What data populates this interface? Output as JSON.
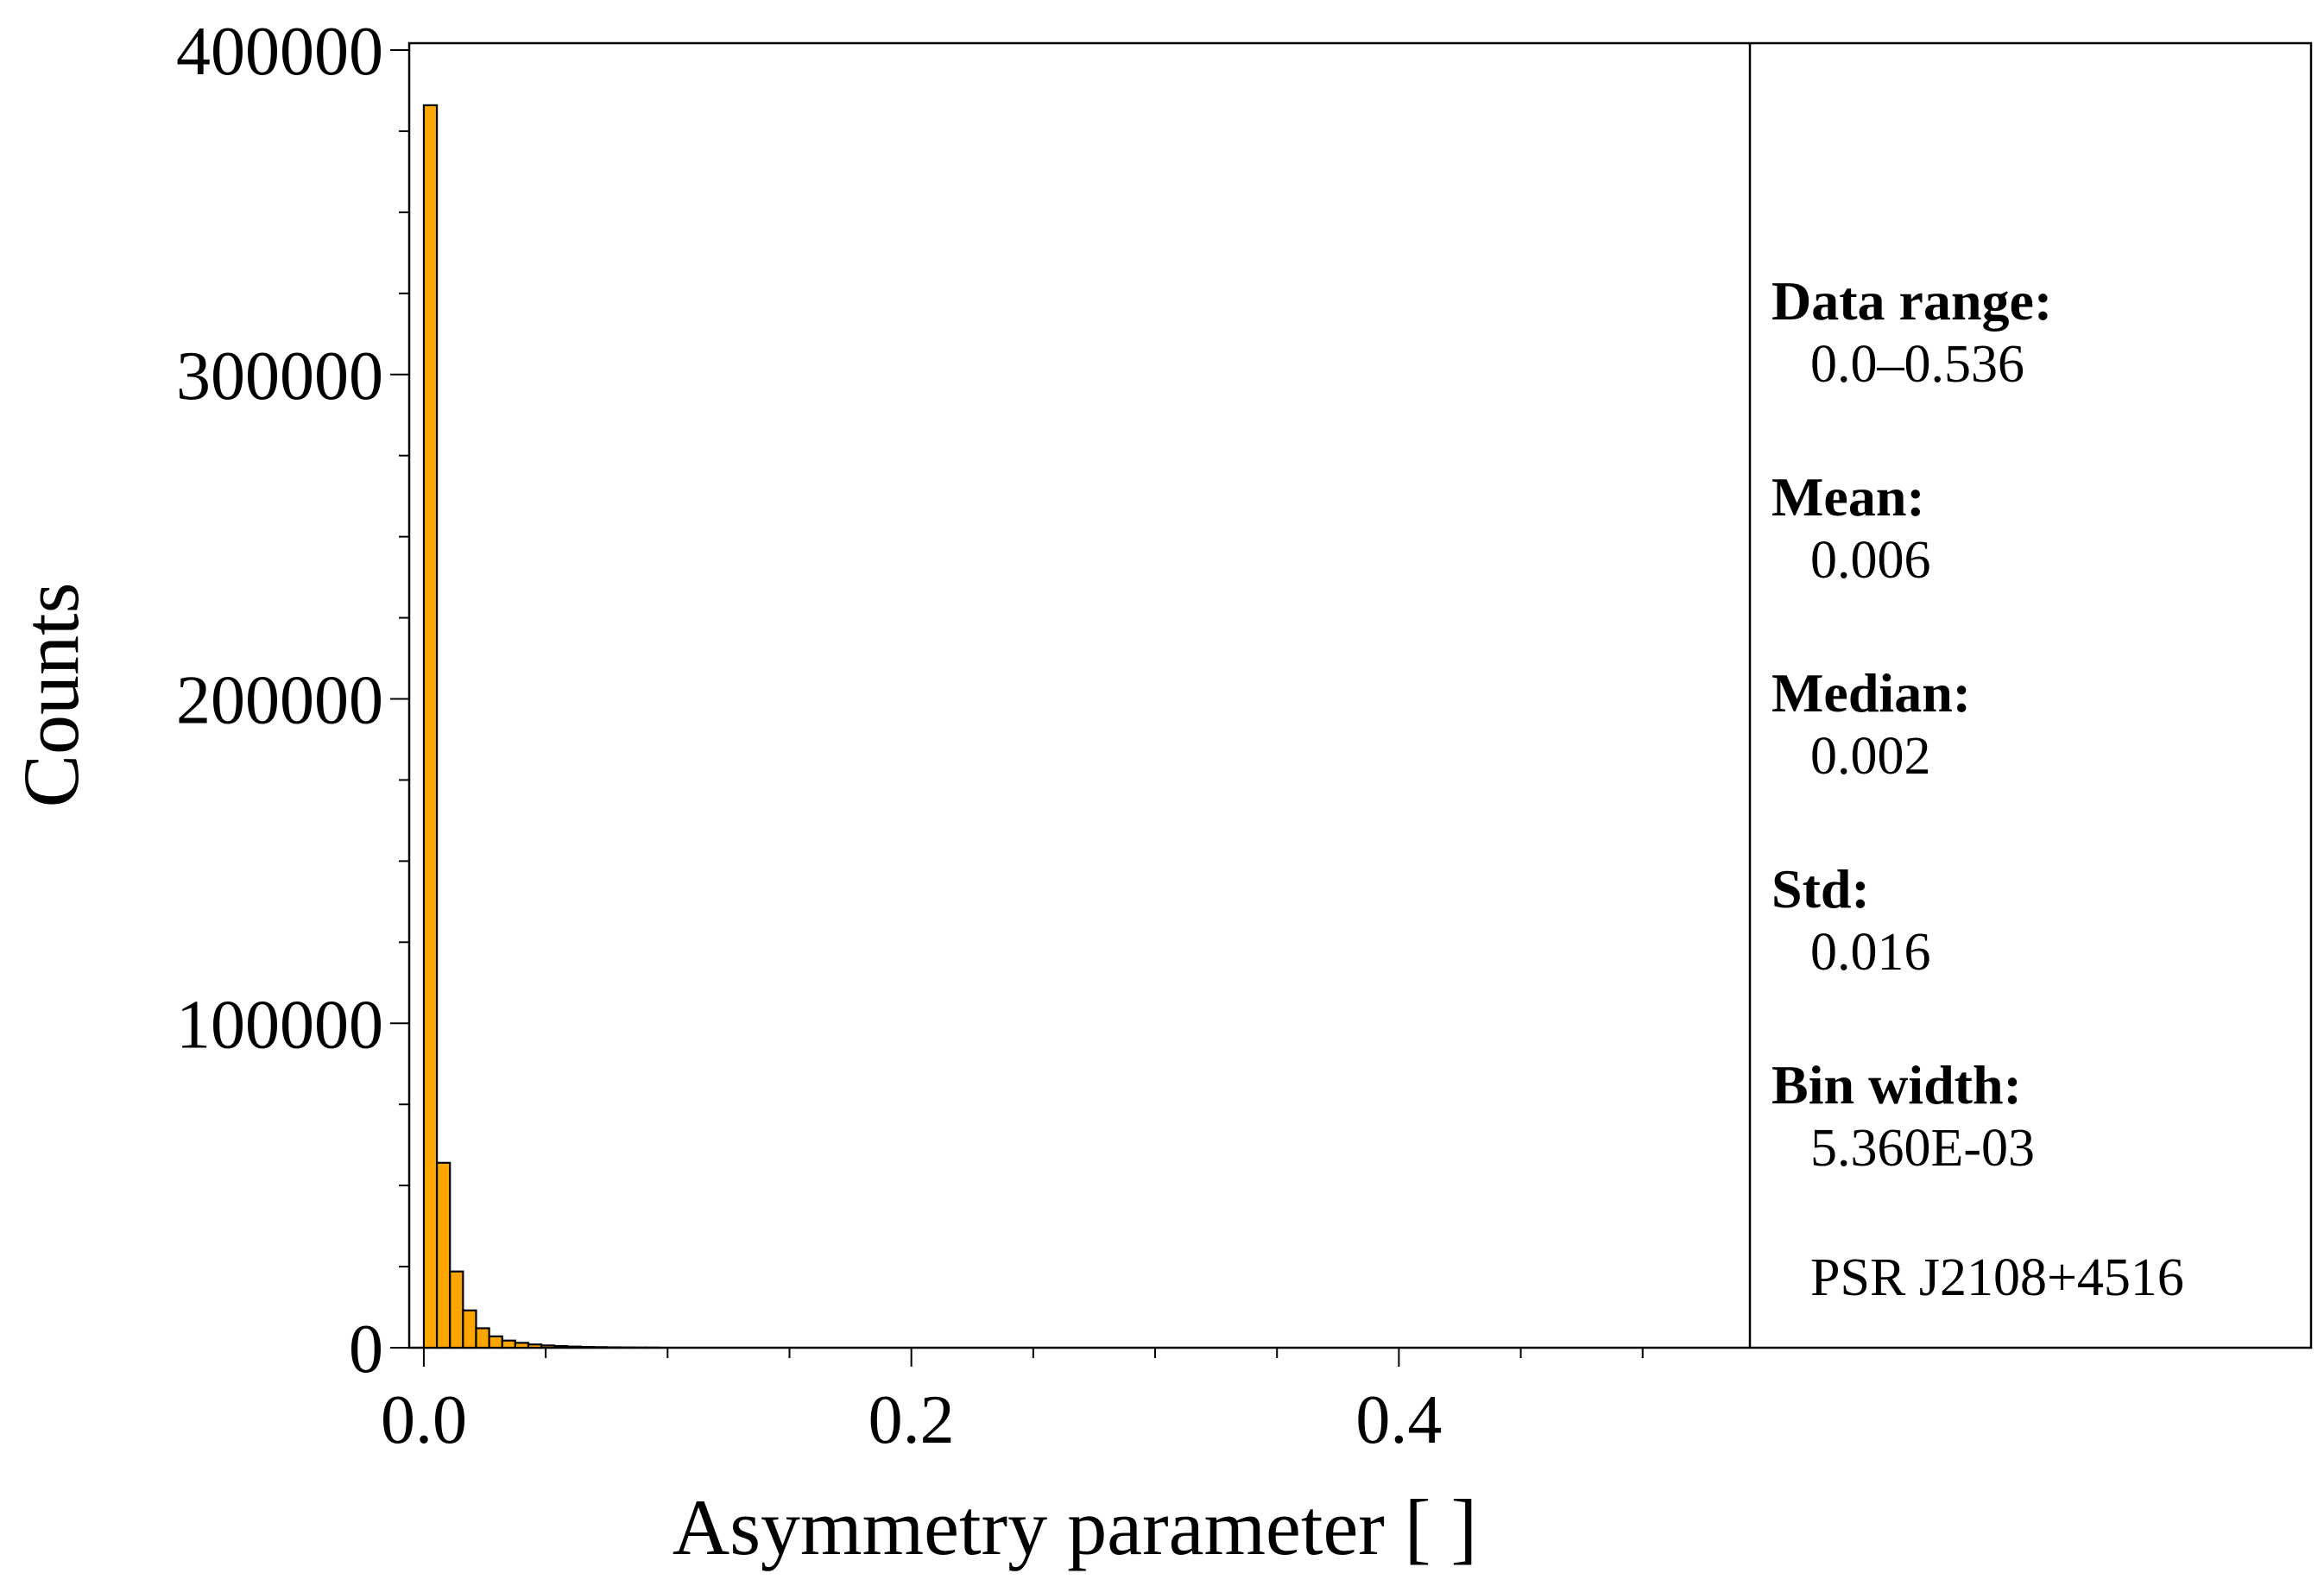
{
  "chart_data": {
    "type": "bar",
    "xlabel": "Asymmetry parameter [ ]",
    "ylabel": "Counts",
    "xlim": [
      -0.006,
      0.544
    ],
    "ylim": [
      0,
      400000
    ],
    "x_ticks": [
      "0.0",
      "0.2",
      "0.4"
    ],
    "x_tick_values": [
      0.0,
      0.2,
      0.4
    ],
    "y_ticks": [
      "0",
      "100000",
      "200000",
      "300000",
      "400000"
    ],
    "y_tick_values": [
      0,
      100000,
      200000,
      300000,
      400000
    ],
    "bar_color": "#FFA500",
    "bin_width": 0.00536,
    "bin_starts": [
      0.0,
      0.00536,
      0.01072,
      0.01608,
      0.02144,
      0.0268,
      0.03216,
      0.03752,
      0.04288,
      0.04824,
      0.0536,
      0.05896,
      0.06432,
      0.06968,
      0.07504,
      0.0804,
      0.08576,
      0.09112
    ],
    "values": [
      383000,
      57000,
      23500,
      11500,
      6000,
      3500,
      2200,
      1500,
      1000,
      700,
      500,
      350,
      250,
      180,
      120,
      80,
      50,
      30
    ]
  },
  "stats_box": {
    "data_range_label": "Data range:",
    "data_range_value": "0.0–0.536",
    "mean_label": "Mean:",
    "mean_value": "0.006",
    "median_label": "Median:",
    "median_value": "0.002",
    "std_label": "Std:",
    "std_value": "0.016",
    "bin_width_label": "Bin width:",
    "bin_width_value": "5.360E-03",
    "source_name": "PSR J2108+4516"
  }
}
